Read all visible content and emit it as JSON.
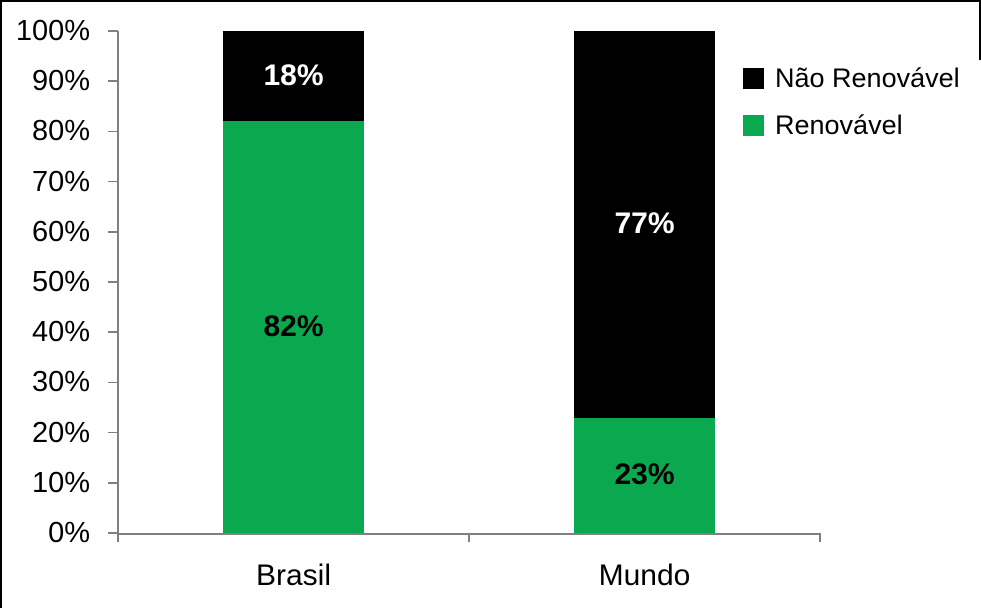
{
  "chart_data": {
    "type": "bar",
    "stacked": true,
    "percent_stacked": true,
    "title": "",
    "xlabel": "",
    "ylabel": "",
    "categories": [
      "Brasil",
      "Mundo"
    ],
    "series": [
      {
        "name": "Renovável",
        "values": [
          82,
          23
        ],
        "labels": [
          "82%",
          "23%"
        ],
        "color": "#0aa84f",
        "label_color": "#000000"
      },
      {
        "name": "Não Renovável",
        "values": [
          18,
          77
        ],
        "labels": [
          "18%",
          "77%"
        ],
        "color": "#000000",
        "label_color": "#ffffff"
      }
    ],
    "y_axis": {
      "min": 0,
      "max": 100,
      "step": 10,
      "tick_labels": [
        "0%",
        "10%",
        "20%",
        "30%",
        "40%",
        "50%",
        "60%",
        "70%",
        "80%",
        "90%",
        "100%"
      ]
    },
    "legend": {
      "position": "top-right",
      "entries": [
        {
          "label": "Não Renovável",
          "color": "#000000"
        },
        {
          "label": "Renovável",
          "color": "#0aa84f"
        }
      ]
    },
    "grid": "off",
    "axis_color": "#808080",
    "background_color": "#ffffff"
  }
}
